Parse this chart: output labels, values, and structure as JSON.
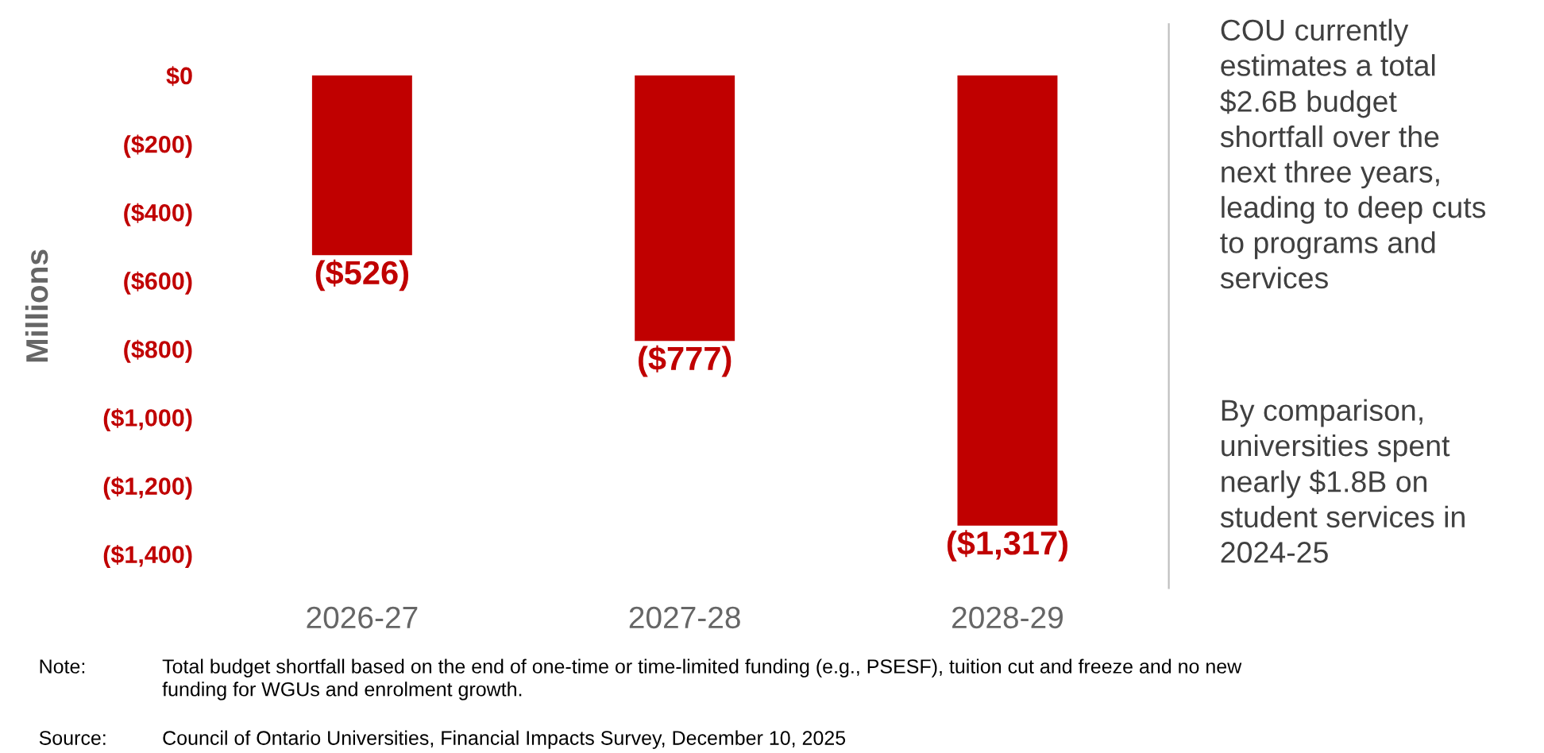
{
  "chart_data": {
    "type": "bar",
    "ylabel": "Millions",
    "categories": [
      "2026-27",
      "2027-28",
      "2028-29"
    ],
    "values": [
      -526,
      -777,
      -1317
    ],
    "value_labels": [
      "($526)",
      "($777)",
      "($1,317)"
    ],
    "color": "#c00000",
    "ylim": [
      -1500,
      150
    ],
    "yticks": [
      {
        "value": 0,
        "label": "$0"
      },
      {
        "value": -200,
        "label": "($200)"
      },
      {
        "value": -400,
        "label": "($400)"
      },
      {
        "value": -600,
        "label": "($600)"
      },
      {
        "value": -800,
        "label": "($800)"
      },
      {
        "value": -1000,
        "label": "($1,000)"
      },
      {
        "value": -1200,
        "label": "($1,200)"
      },
      {
        "value": -1400,
        "label": "($1,400)"
      }
    ],
    "grid": false,
    "legend": false,
    "annotations": [
      "COU currently\nestimates a total\n$2.6B budget\nshortfall over the\nnext three years,\nleading to deep cuts\nto programs and\nservices",
      "By comparison,\nuniversities spent\nnearly $1.8B on\nstudent services in\n2024-25",
      "Note:",
      "Total budget shortfall based on the end of one-time or time-limited funding (e.g., PSESF), tuition cut and freeze and no new\nfunding for WGUs and enrolment growth.",
      "Source:",
      "Council of Ontario Universities, Financial Impacts Survey, December 10, 2025"
    ]
  }
}
